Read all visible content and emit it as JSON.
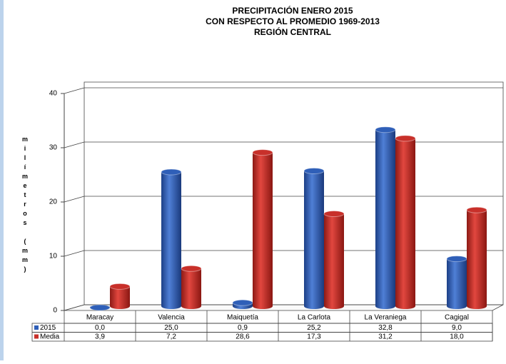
{
  "chart_data": {
    "type": "bar3d",
    "title": [
      "PRECIPITACIÓN ENERO 2015",
      "CON RESPECTO AL PROMEDIO 1969-2013",
      "REGIÓN CENTRAL"
    ],
    "y_label": "milímetros (mm)",
    "categories": [
      "Maracay",
      "Valencia",
      "Maiquetía",
      "La Carlota",
      "La Veraniega",
      "Cagigal"
    ],
    "series": [
      {
        "name": "2015",
        "color": "#2f5fb8",
        "values": [
          0.0,
          25.0,
          0.9,
          25.2,
          32.8,
          9.0
        ],
        "value_labels": [
          "0,0",
          "25,0",
          "0,9",
          "25,2",
          "32,8",
          "9,0"
        ]
      },
      {
        "name": "Media",
        "color": "#c8302a",
        "values": [
          3.9,
          7.2,
          28.6,
          17.3,
          31.2,
          18.0
        ],
        "value_labels": [
          "3,9",
          "7,2",
          "28,6",
          "17,3",
          "31,2",
          "18,0"
        ]
      }
    ],
    "ylim": [
      0,
      40
    ],
    "yticks": [
      0,
      10,
      20,
      30,
      40
    ],
    "grid": true
  }
}
